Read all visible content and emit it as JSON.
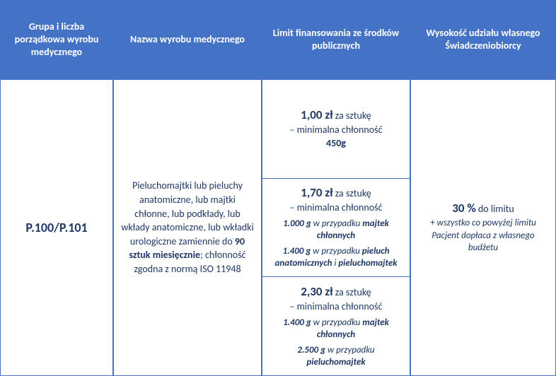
{
  "colors": {
    "header_bg": "#4472c4",
    "border": "#4472c4",
    "text": "#1f3864",
    "header_text": "#ffffff"
  },
  "headers": {
    "col1": "Grupa i liczba porządkowa wyrobu medycznego",
    "col2": "Nazwa wyrobu medycznego",
    "col3": "Limit finansowania ze środków publicznych",
    "col4": "Wysokość udziału własnego Świadczeniobiorcy"
  },
  "row": {
    "group_code": "P.100/P.101",
    "desc_pre": "Pieluchomajtki lub pieluchy anatomiczne, lub majtki chłonne, lub podkłady, lub wkłady anatomiczne, lub wkładki urologiczne zamiennie do ",
    "desc_bold": "90 sztuk miesięcznie",
    "desc_post": "; chłonność zgodna z normą ISO 11948",
    "limits": [
      {
        "price": "1,00 zł",
        "unit": " za sztukę",
        "minline": "– minimalna chłonność",
        "mass_only": "450g"
      },
      {
        "price": "1,70 zł",
        "unit": " za sztukę",
        "minline": "– minimalna chłonność",
        "spec_m1": "1.000 g",
        "spec_t1a": " w przypadku ",
        "spec_b1": "majtek chłonnych",
        "spec_m2": "1.400 g",
        "spec_t2a": " w przypadku ",
        "spec_b2": "pieluch anatomicznych",
        "spec_t2b": " i ",
        "spec_b3": "pieluchomajtek"
      },
      {
        "price": "2,30 zł",
        "unit": " za sztukę",
        "minline": "– minimalna chłonność",
        "spec_m1": "1.400 g",
        "spec_t1a": " w przypadku ",
        "spec_b1": "majtek chłonnych",
        "spec_m2": "2.500 g",
        "spec_t2a": " w przypadku ",
        "spec_b2": "pieluchomajtek"
      }
    ],
    "share": {
      "pct": "30 %",
      "pct_suffix": " do limitu",
      "note": "+ wszystko co powyżej limitu Pacjent dopłaca z własnego budżetu"
    }
  }
}
